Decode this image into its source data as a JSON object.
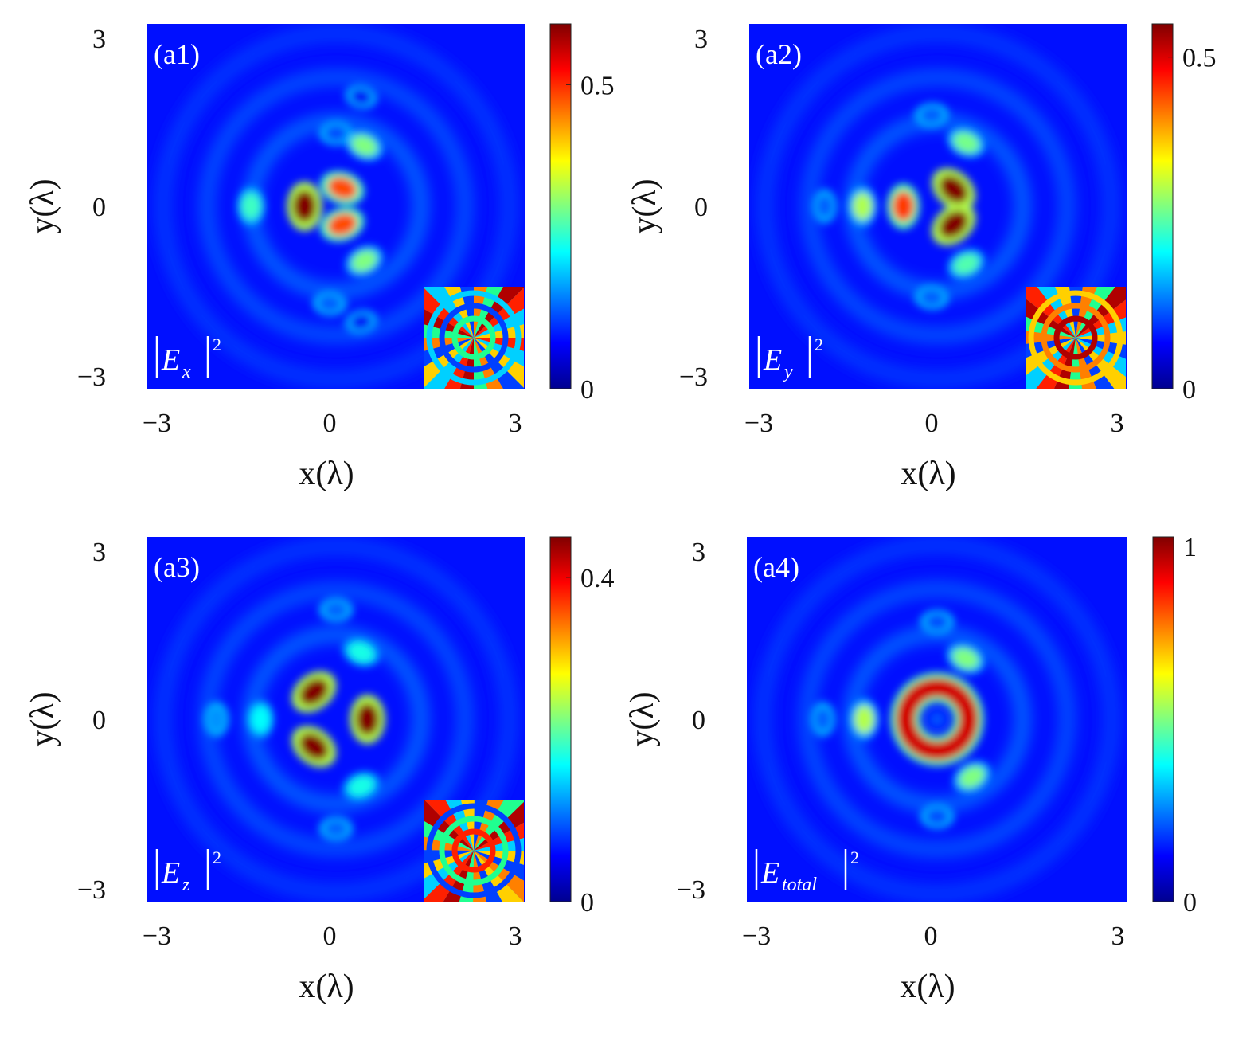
{
  "chart_data": [
    {
      "type": "heatmap",
      "panel_label": "(a1)",
      "annotation": {
        "base": "E",
        "sub": "x",
        "sup": "2"
      },
      "xlabel": "x(λ)",
      "ylabel": "y(λ)",
      "x_ticks": [
        "−3",
        "0",
        "3"
      ],
      "y_ticks": [
        "3",
        "0",
        "−3"
      ],
      "xlim": [
        -3,
        3
      ],
      "ylim": [
        -3,
        3
      ],
      "colorbar": {
        "min": 0,
        "max": 0.6,
        "ticks": [
          {
            "value": 0,
            "label": "0"
          },
          {
            "value": 0.5,
            "label": "0.5"
          }
        ],
        "colormap": "jet"
      },
      "inset": "phase",
      "peaks": [
        {
          "x": -0.5,
          "y": 0.0,
          "value": 0.6
        },
        {
          "x": 0.1,
          "y": 0.3,
          "value": 0.48
        },
        {
          "x": 0.1,
          "y": -0.3,
          "value": 0.48
        },
        {
          "x": -1.35,
          "y": 0.0,
          "value": 0.26
        },
        {
          "x": 0.45,
          "y": 1.0,
          "value": 0.3
        },
        {
          "x": 0.45,
          "y": -0.9,
          "value": 0.3
        },
        {
          "x": -0.1,
          "y": -1.6,
          "value": 0.13
        },
        {
          "x": 0.0,
          "y": 1.2,
          "value": 0.12
        },
        {
          "x": 0.4,
          "y": 1.8,
          "value": 0.07
        },
        {
          "x": 0.4,
          "y": -1.9,
          "value": 0.07
        }
      ]
    },
    {
      "type": "heatmap",
      "panel_label": "(a2)",
      "annotation": {
        "base": "E",
        "sub": "y",
        "sup": "2"
      },
      "xlabel": "x(λ)",
      "ylabel": "y(λ)",
      "x_ticks": [
        "−3",
        "0",
        "3"
      ],
      "y_ticks": [
        "3",
        "0",
        "−3"
      ],
      "xlim": [
        -3,
        3
      ],
      "ylim": [
        -3,
        3
      ],
      "colorbar": {
        "min": 0,
        "max": 0.55,
        "ticks": [
          {
            "value": 0,
            "label": "0"
          },
          {
            "value": 0.5,
            "label": "0.5"
          }
        ],
        "colormap": "jet"
      },
      "inset": "phase",
      "peaks": [
        {
          "x": 0.25,
          "y": 0.28,
          "value": 0.55
        },
        {
          "x": 0.25,
          "y": -0.3,
          "value": 0.55
        },
        {
          "x": -0.55,
          "y": 0.0,
          "value": 0.45
        },
        {
          "x": -1.2,
          "y": 0.0,
          "value": 0.3
        },
        {
          "x": 0.45,
          "y": 1.05,
          "value": 0.27
        },
        {
          "x": 0.45,
          "y": -0.95,
          "value": 0.25
        },
        {
          "x": -1.8,
          "y": 0.0,
          "value": 0.12
        },
        {
          "x": -0.1,
          "y": 1.5,
          "value": 0.12
        },
        {
          "x": -0.1,
          "y": -1.5,
          "value": 0.12
        }
      ]
    },
    {
      "type": "heatmap",
      "panel_label": "(a3)",
      "annotation": {
        "base": "E",
        "sub": "z",
        "sup": "2"
      },
      "xlabel": "x(λ)",
      "ylabel": "y(λ)",
      "x_ticks": [
        "−3",
        "0",
        "3"
      ],
      "y_ticks": [
        "3",
        "0",
        "−3"
      ],
      "xlim": [
        -3,
        3
      ],
      "ylim": [
        -3,
        3
      ],
      "colorbar": {
        "min": 0,
        "max": 0.45,
        "ticks": [
          {
            "value": 0,
            "label": "0"
          },
          {
            "value": 0.4,
            "label": "0.4"
          }
        ],
        "colormap": "jet"
      },
      "inset": "phase",
      "peaks": [
        {
          "x": -0.35,
          "y": 0.45,
          "value": 0.45
        },
        {
          "x": -0.35,
          "y": -0.45,
          "value": 0.45
        },
        {
          "x": 0.5,
          "y": 0.0,
          "value": 0.45
        },
        {
          "x": -1.2,
          "y": 0.0,
          "value": 0.17
        },
        {
          "x": 0.4,
          "y": 1.1,
          "value": 0.18
        },
        {
          "x": 0.4,
          "y": -1.1,
          "value": 0.18
        },
        {
          "x": -1.9,
          "y": 0.0,
          "value": 0.12
        },
        {
          "x": 0.0,
          "y": 1.8,
          "value": 0.1
        },
        {
          "x": 0.0,
          "y": -1.8,
          "value": 0.1
        }
      ]
    },
    {
      "type": "heatmap",
      "panel_label": "(a4)",
      "annotation": {
        "base": "E",
        "sub": "total",
        "sup": "2"
      },
      "xlabel": "x(λ)",
      "ylabel": "y(λ)",
      "x_ticks": [
        "−3",
        "0",
        "3"
      ],
      "y_ticks": [
        "3",
        "0",
        "−3"
      ],
      "xlim": [
        -3,
        3
      ],
      "ylim": [
        -3,
        3
      ],
      "colorbar": {
        "min": 0,
        "max": 1,
        "ticks": [
          {
            "value": 0,
            "label": "0"
          },
          {
            "value": 1,
            "label": "1"
          }
        ],
        "colormap": "jet"
      },
      "inset": null,
      "peaks": [
        {
          "x": 0.0,
          "y": 0.0,
          "value": 1.0,
          "ring": 0.5
        },
        {
          "x": -1.15,
          "y": 0.0,
          "value": 0.55
        },
        {
          "x": 0.45,
          "y": 1.0,
          "value": 0.5
        },
        {
          "x": 0.55,
          "y": -0.95,
          "value": 0.5
        },
        {
          "x": -1.8,
          "y": 0.0,
          "value": 0.22
        },
        {
          "x": 0.0,
          "y": 1.6,
          "value": 0.2
        },
        {
          "x": 0.0,
          "y": -1.6,
          "value": 0.2
        }
      ]
    }
  ]
}
